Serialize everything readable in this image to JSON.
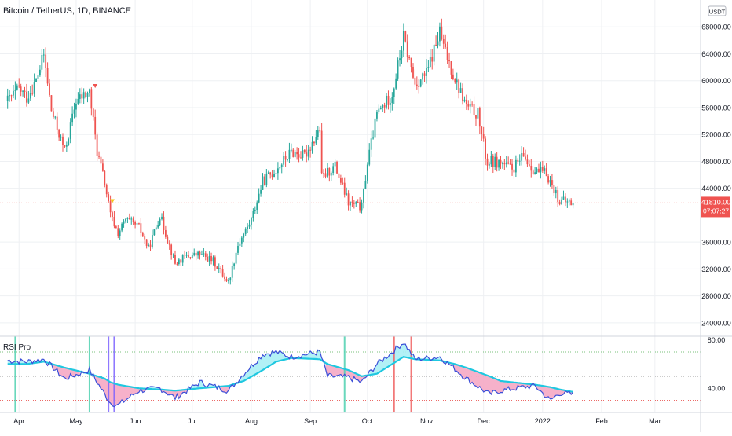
{
  "header": {
    "symbol_title": "Bitcoin / TetherUS, 1D, BINANCE",
    "currency_button": "USDT"
  },
  "price_badge": {
    "price": "41810.00",
    "countdown": "07:07:27"
  },
  "colors": {
    "up": "#26a69a",
    "down": "#ef5350",
    "grid": "#eef0f3",
    "axis_text": "#131722",
    "rsi_line": "#3b4fd8",
    "rsi_ma": "#1fc8e0",
    "fill_up": "#aaf0f5",
    "fill_down": "#f5a8c4",
    "level_upper": "#4caf50",
    "level_mid": "#333333",
    "level_lower": "#e53935",
    "vline_green": "#4fd1b0",
    "vline_purple": "#7b61ff",
    "vline_red": "#f06262",
    "signal_up": "#f5c518",
    "signal_down": "#ef5350"
  },
  "chart_data": [
    {
      "type": "candlestick",
      "title": "Bitcoin / TetherUS, 1D, BINANCE",
      "x": [
        "2021-03-26",
        "2021-04-01",
        "2021-04-05",
        "2021-04-10",
        "2021-04-14",
        "2021-04-18",
        "2021-04-25",
        "2021-05-01",
        "2021-05-08",
        "2021-05-12",
        "2021-05-16",
        "2021-05-19",
        "2021-05-23",
        "2021-05-27",
        "2021-06-03",
        "2021-06-08",
        "2021-06-14",
        "2021-06-22",
        "2021-06-27",
        "2021-07-05",
        "2021-07-12",
        "2021-07-20",
        "2021-07-25",
        "2021-08-01",
        "2021-08-07",
        "2021-08-14",
        "2021-08-22",
        "2021-08-29",
        "2021-09-06",
        "2021-09-07",
        "2021-09-14",
        "2021-09-21",
        "2021-09-28",
        "2021-10-01",
        "2021-10-06",
        "2021-10-14",
        "2021-10-20",
        "2021-10-26",
        "2021-11-01",
        "2021-11-08",
        "2021-11-10",
        "2021-11-16",
        "2021-11-22",
        "2021-11-28",
        "2021-12-03",
        "2021-12-04",
        "2021-12-10",
        "2021-12-16",
        "2021-12-22",
        "2021-12-28",
        "2022-01-03",
        "2022-01-10",
        "2022-01-17"
      ],
      "close": [
        57000,
        58800,
        57500,
        60000,
        63800,
        55500,
        49500,
        57000,
        58300,
        49500,
        44800,
        40000,
        37300,
        39300,
        38200,
        35000,
        40000,
        32800,
        33800,
        34200,
        33200,
        30000,
        35600,
        39300,
        45000,
        46800,
        49400,
        48800,
        52800,
        45600,
        47300,
        41800,
        41200,
        47800,
        55000,
        58000,
        66400,
        59500,
        61000,
        67200,
        65000,
        60300,
        56200,
        55000,
        47500,
        48000,
        47800,
        46800,
        48700,
        46500,
        46200,
        42100,
        41810
      ],
      "title_secondary": null,
      "y_ticks": [
        "68000.00",
        "64000.00",
        "60000.00",
        "56000.00",
        "52000.00",
        "48000.00",
        "44000.00",
        "36000.00",
        "32000.00",
        "28000.00",
        "24000.00"
      ],
      "x_ticks": [
        "Apr",
        "May",
        "Jun",
        "Jul",
        "Aug",
        "Sep",
        "Oct",
        "Nov",
        "Dec",
        "2022",
        "Feb",
        "Mar"
      ],
      "ylim": [
        22000,
        72000
      ],
      "last_price": 41810
    },
    {
      "type": "line",
      "title": "RSI Pro",
      "x": [
        "2021-03-26",
        "2021-04-05",
        "2021-04-14",
        "2021-04-25",
        "2021-05-08",
        "2021-05-16",
        "2021-05-19",
        "2021-05-23",
        "2021-06-03",
        "2021-06-14",
        "2021-06-22",
        "2021-07-05",
        "2021-07-20",
        "2021-07-28",
        "2021-08-07",
        "2021-08-14",
        "2021-08-22",
        "2021-09-06",
        "2021-09-10",
        "2021-09-21",
        "2021-09-28",
        "2021-10-06",
        "2021-10-14",
        "2021-10-20",
        "2021-10-26",
        "2021-11-08",
        "2021-11-16",
        "2021-11-22",
        "2021-12-04",
        "2021-12-10",
        "2021-12-22",
        "2021-12-28",
        "2022-01-05",
        "2022-01-10",
        "2022-01-17"
      ],
      "series": [
        {
          "values": [
            63,
            62,
            64,
            48,
            55,
            35,
            28,
            26,
            38,
            40,
            32,
            45,
            38,
            52,
            68,
            70,
            66,
            70,
            50,
            49,
            45,
            60,
            70,
            78,
            64,
            66,
            56,
            48,
            35,
            38,
            41,
            42,
            30,
            36,
            35
          ]
        },
        {
          "values": [
            60,
            60,
            62,
            57,
            52,
            48,
            45,
            43,
            40,
            39,
            38,
            40,
            42,
            46,
            55,
            62,
            65,
            64,
            60,
            55,
            50,
            52,
            60,
            66,
            64,
            63,
            60,
            57,
            50,
            46,
            44,
            43,
            41,
            39,
            37
          ]
        }
      ],
      "y_ticks": [
        "80.00",
        "40.00"
      ],
      "levels": [
        70,
        50,
        30
      ],
      "ylim": [
        20,
        83
      ]
    }
  ]
}
